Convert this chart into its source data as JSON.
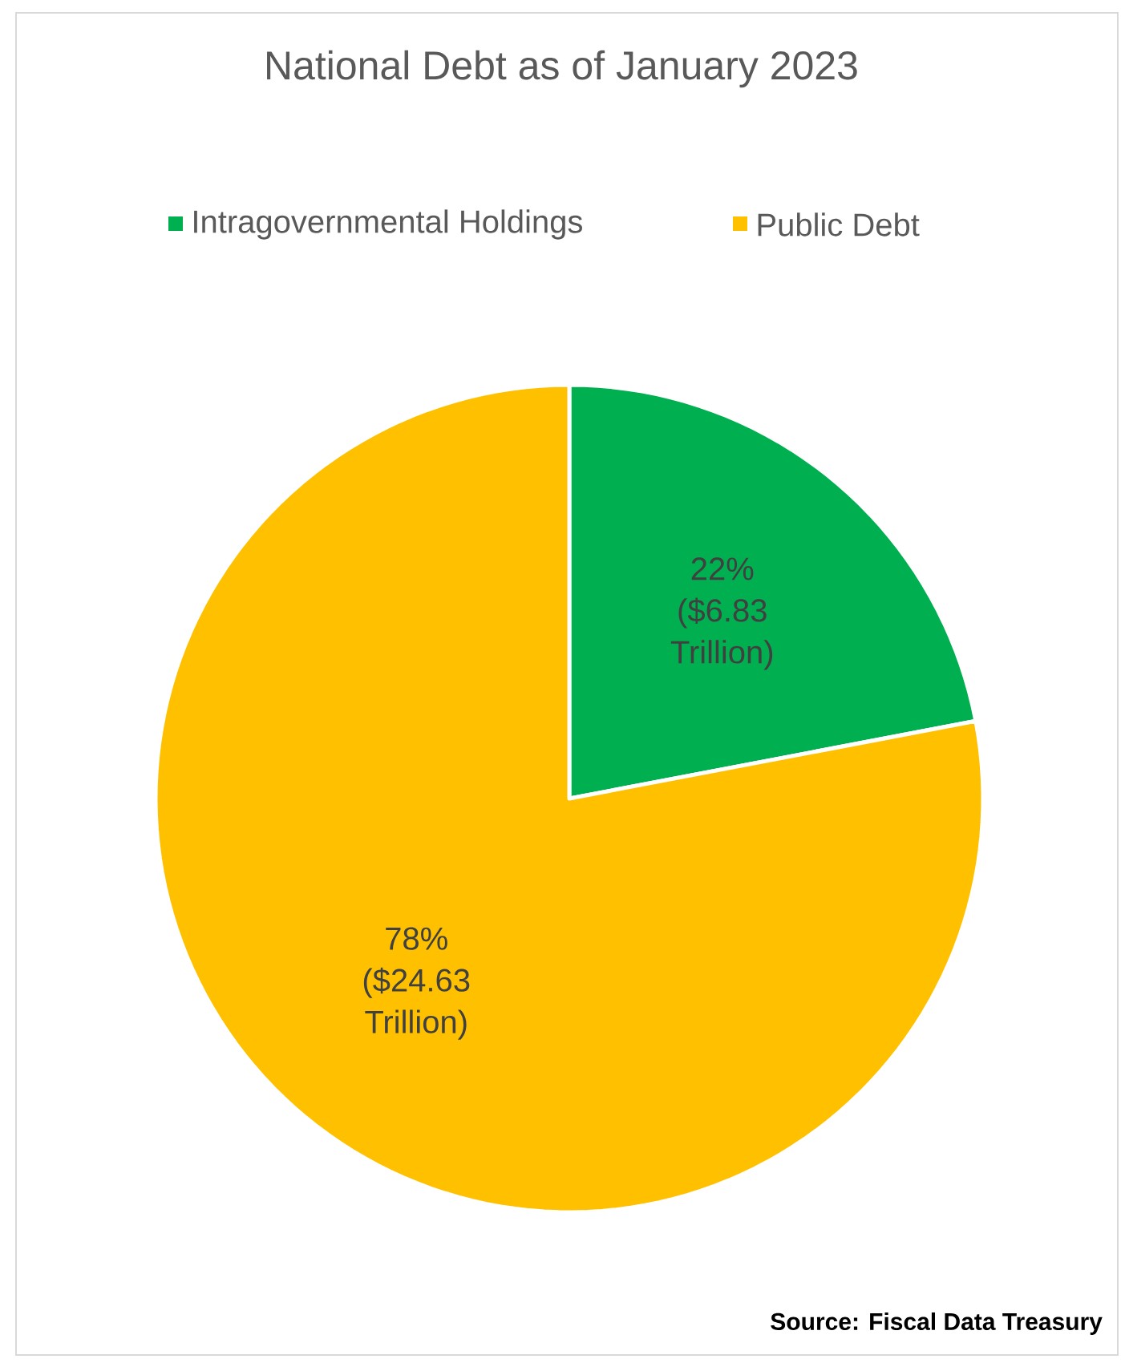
{
  "chart_data": {
    "type": "pie",
    "title": "National Debt as of January 2023",
    "categories": [
      "Intragovernmental Holdings",
      "Public Debt"
    ],
    "values": [
      22,
      78
    ],
    "colors": [
      "#00b050",
      "#ffc000"
    ],
    "value_labels": [
      "22% ($6.83 Trillion)",
      "78% ($24.63 Trillion)"
    ],
    "legend": "top",
    "annotations": [
      "Source: Fiscal Data Treasury"
    ]
  }
}
